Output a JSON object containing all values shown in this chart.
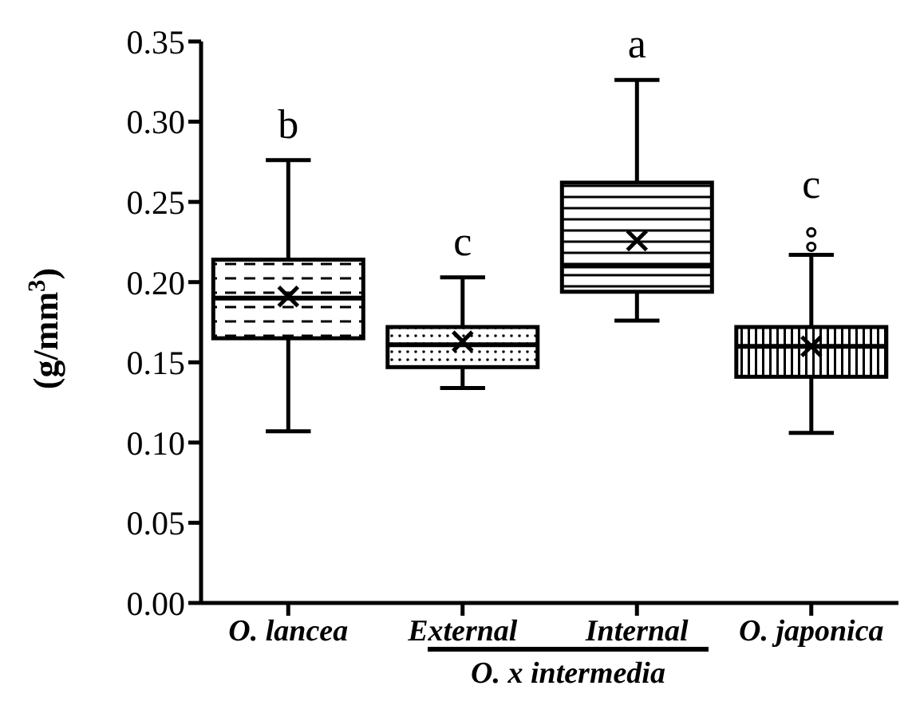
{
  "chart_data": {
    "type": "box",
    "ylabel": "(g/mm$^{3}$)",
    "categories": [
      "O. lancea",
      "External",
      "Internal",
      "O. japonica"
    ],
    "series": [
      {
        "color": "#000000",
        "boxes": [
          {
            "low": 0.107,
            "q1": 0.165,
            "median": 0.19,
            "q3": 0.214,
            "high": 0.276,
            "mean": 0.191
          },
          {
            "low": 0.134,
            "q1": 0.147,
            "median": 0.161,
            "q3": 0.172,
            "high": 0.203,
            "mean": 0.163
          },
          {
            "low": 0.176,
            "q1": 0.194,
            "median": 0.21,
            "q3": 0.262,
            "high": 0.326,
            "mean": 0.226
          },
          {
            "low": 0.106,
            "q1": 0.141,
            "median": 0.16,
            "q3": 0.172,
            "high": 0.217,
            "mean": 0.16,
            "outliers": [
              0.222,
              0.231
            ]
          }
        ]
      }
    ],
    "ylim": [
      0,
      0.35
    ],
    "yticks": [
      {
        "value": 0,
        "label": "0.00"
      },
      {
        "value": 0.05,
        "label": "0.05"
      },
      {
        "value": 0.1,
        "label": "0.10"
      },
      {
        "value": 0.15,
        "label": "0.15"
      },
      {
        "value": 0.2,
        "label": "0.20"
      },
      {
        "value": 0.25,
        "label": "0.25"
      },
      {
        "value": 0.3,
        "label": "0.30"
      },
      {
        "value": 0.35,
        "label": "0.35"
      }
    ],
    "grid": false,
    "annotations": [
      {
        "text": "b",
        "x": "O. lancea",
        "y": 0.276
      },
      {
        "text": "c",
        "x": "External",
        "y": 0.203
      },
      {
        "text": "a",
        "x": "Internal",
        "y": 0.326
      },
      {
        "text": "c",
        "x": "O. japonica",
        "y": 0.217
      },
      "O. x intermedia"
    ]
  }
}
